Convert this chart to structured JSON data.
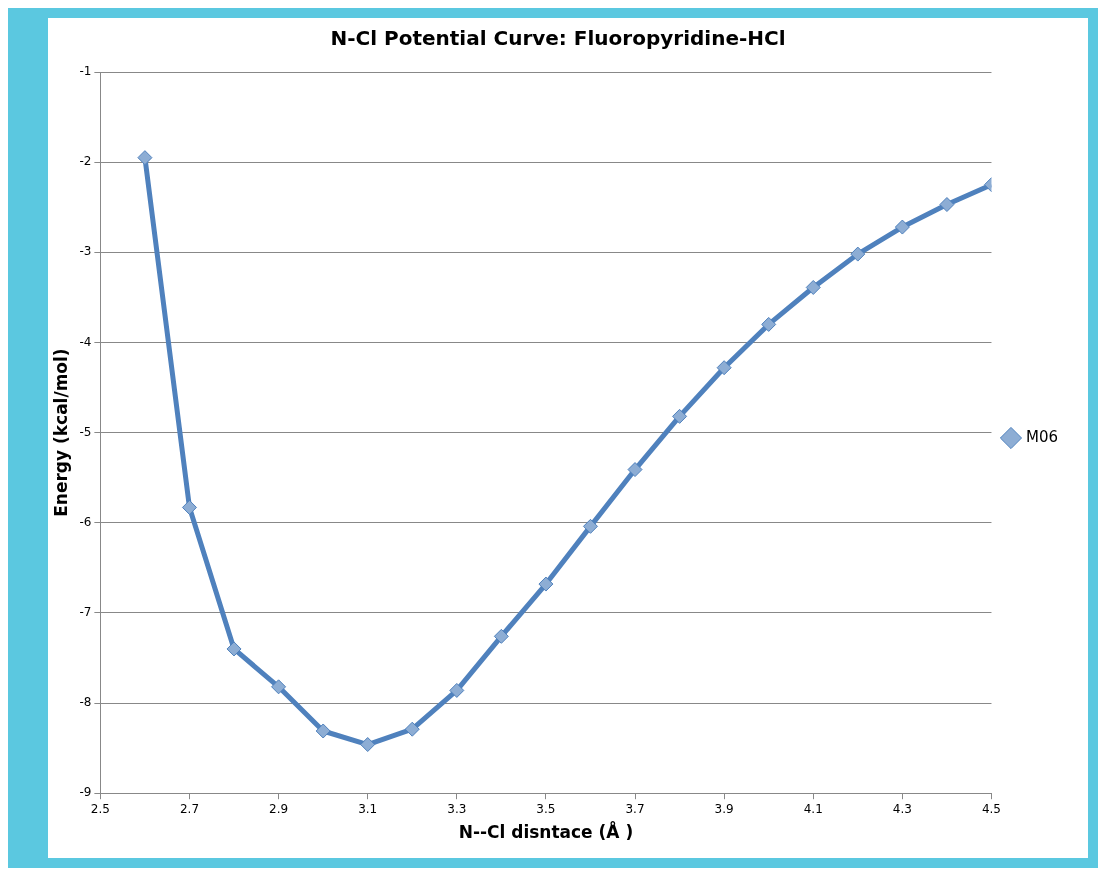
{
  "chart_data": {
    "type": "line",
    "title": "N-Cl Potential Curve: Fluoropyridine-HCl",
    "xlabel": "N--Cl disntace (Å )",
    "ylabel": "Energy (kcal/mol)",
    "x": [
      2.6,
      2.7,
      2.8,
      2.9,
      3.0,
      3.1,
      3.2,
      3.3,
      3.4,
      3.5,
      3.6,
      3.7,
      3.8,
      3.9,
      4.0,
      4.1,
      4.2,
      4.3,
      4.4,
      4.5
    ],
    "series": [
      {
        "name": "M06",
        "color": "#4f81bd",
        "values": [
          -1.95,
          -5.83,
          -7.4,
          -7.82,
          -8.31,
          -8.46,
          -8.29,
          -7.86,
          -7.26,
          -6.68,
          -6.04,
          -5.41,
          -4.82,
          -4.28,
          -3.8,
          -3.39,
          -3.02,
          -2.72,
          -2.47,
          -2.25
        ]
      }
    ],
    "xlim": [
      2.5,
      4.5
    ],
    "xticks": [
      2.5,
      2.7,
      2.9,
      3.1,
      3.3,
      3.5,
      3.7,
      3.9,
      4.1,
      4.3,
      4.5
    ],
    "ylim": [
      -9,
      -1
    ],
    "yticks": [
      -9,
      -8,
      -7,
      -6,
      -5,
      -4,
      -3,
      -2,
      -1
    ],
    "grid": "y",
    "legend": "right",
    "marker": "diamond",
    "line_style": "solid"
  }
}
